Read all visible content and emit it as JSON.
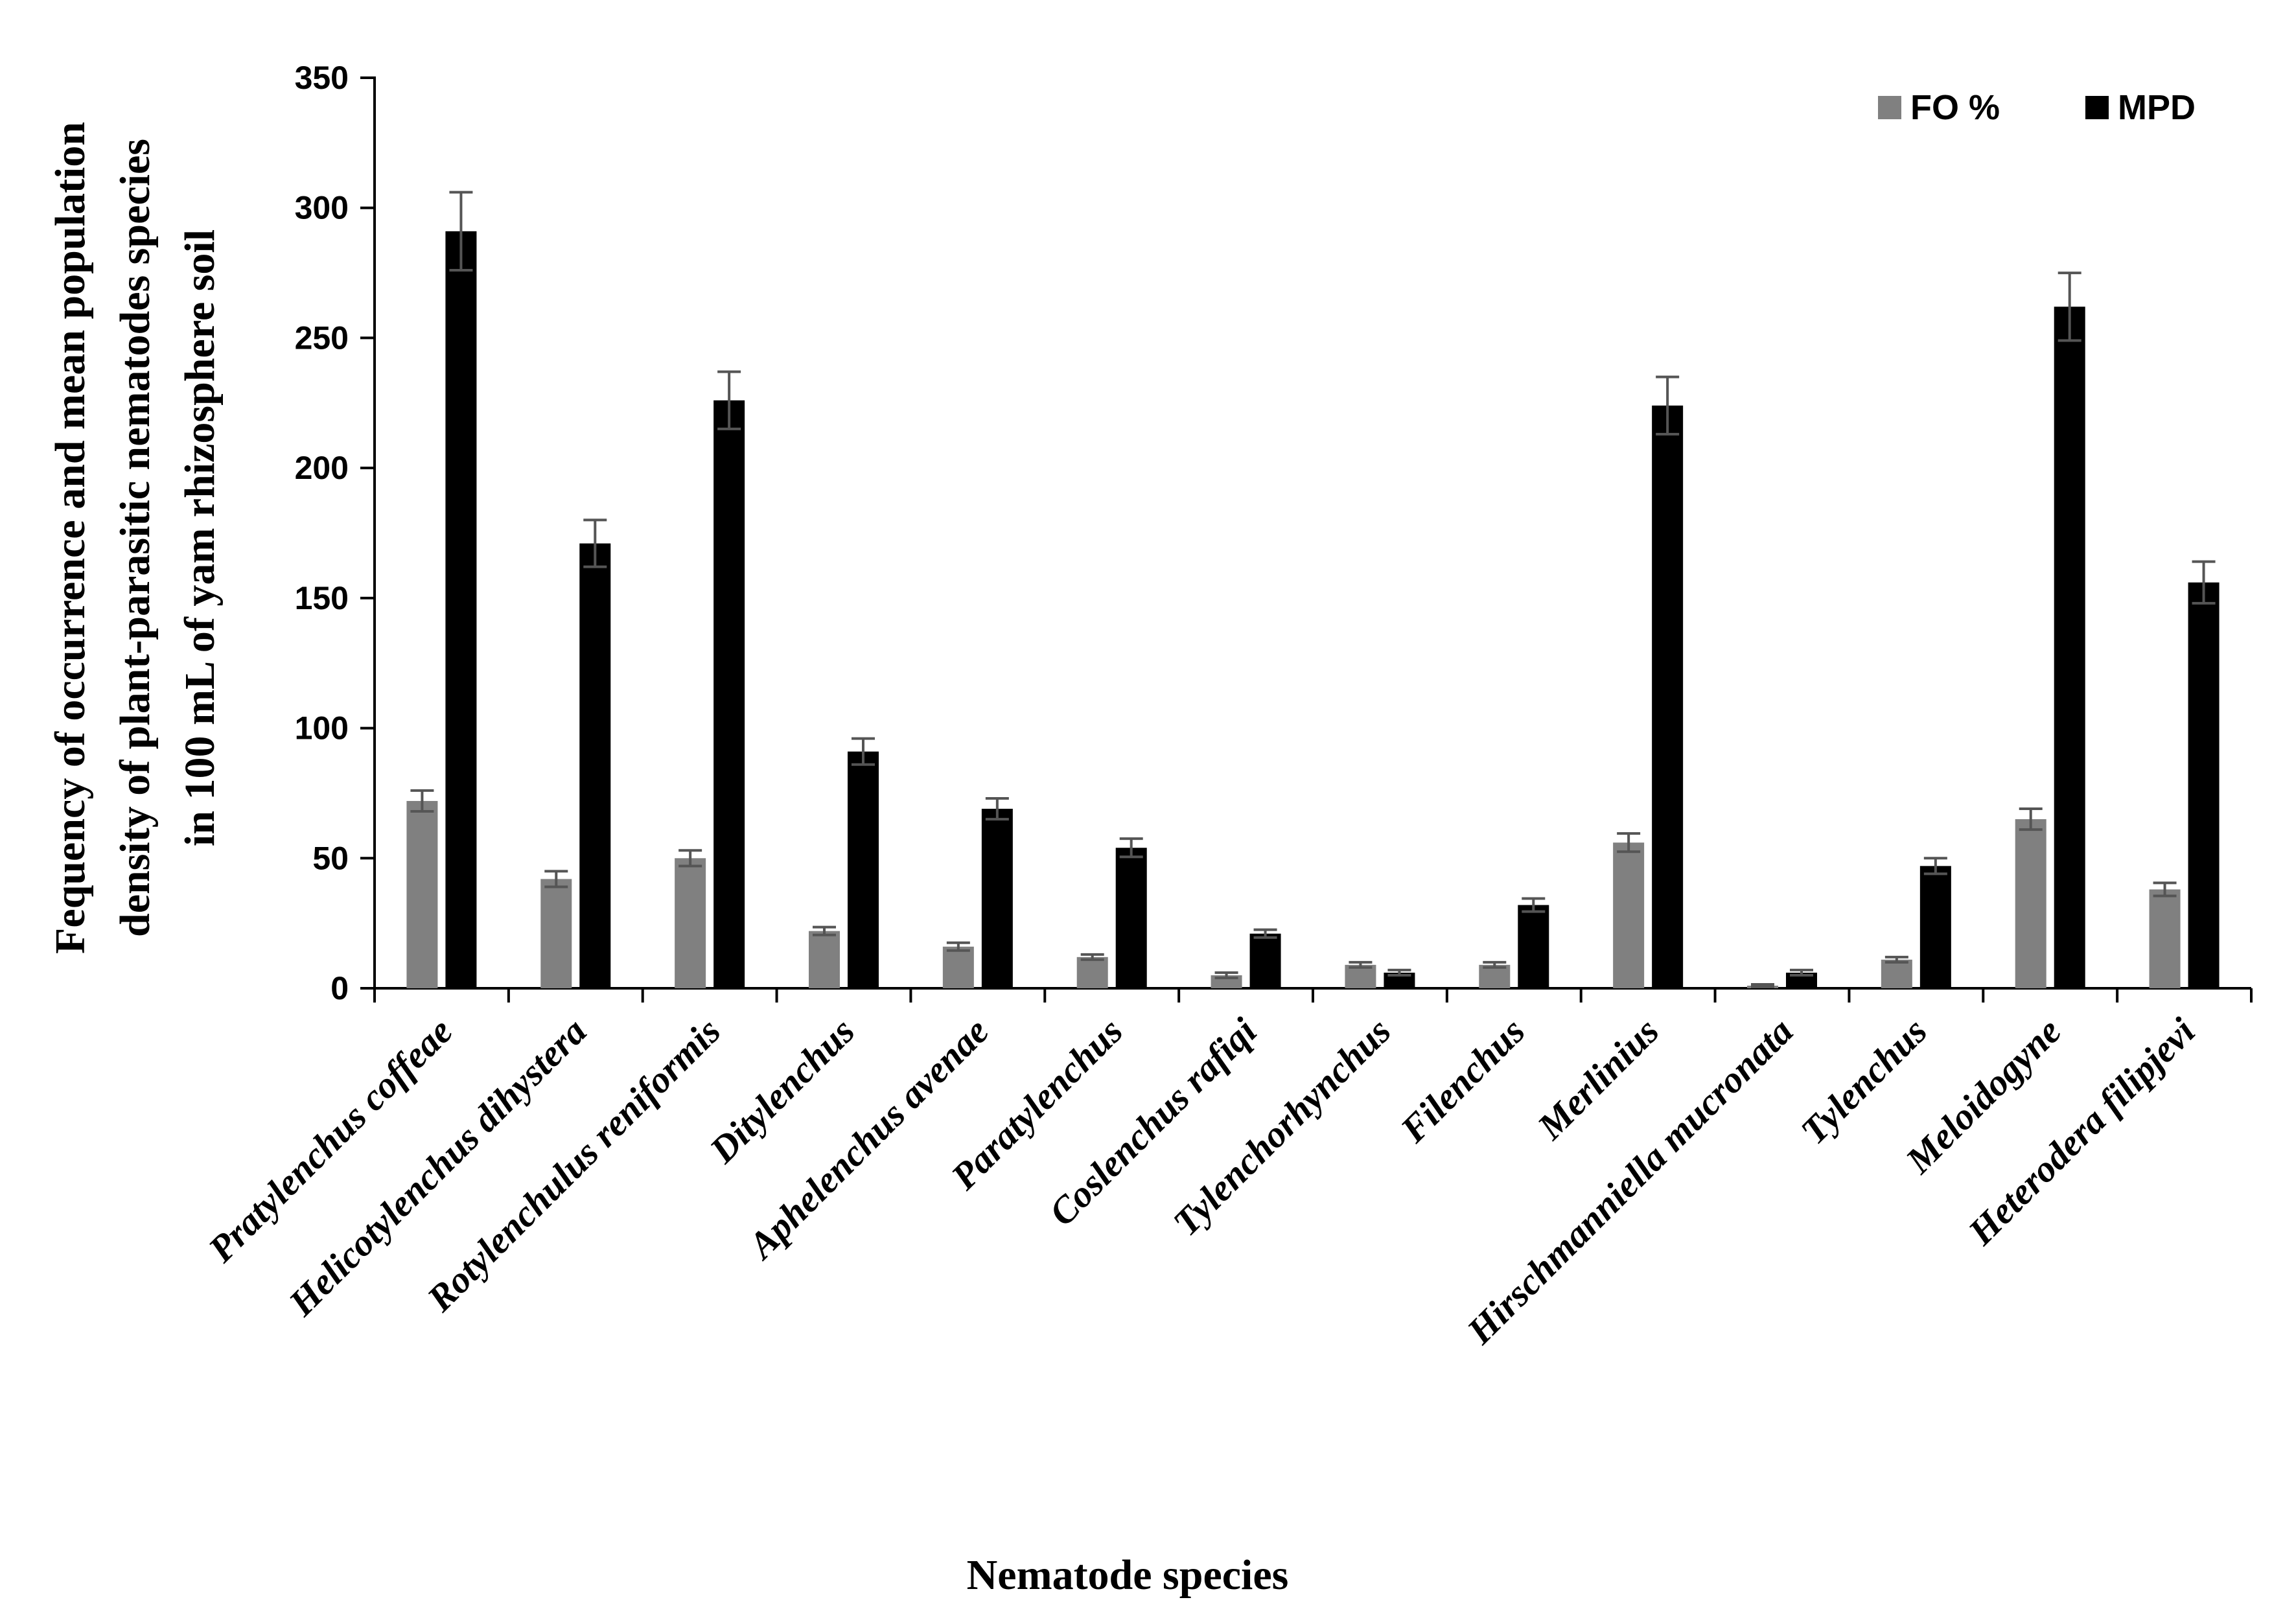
{
  "chart_data": {
    "type": "bar",
    "title": "",
    "xlabel": "Nematode species",
    "ylabel_lines": [
      "Fequency of occurrence and mean population",
      "density of plant-parasitic nematodes species",
      "in 100 mL of yam rhizosphere soil"
    ],
    "ylim": [
      0,
      350
    ],
    "yticks": [
      0,
      50,
      100,
      150,
      200,
      250,
      300,
      350
    ],
    "legend_position": "top-right",
    "categories": [
      "Pratylenchus coffeae",
      "Helicotylenchus dihystera",
      "Rotylenchulus reniformis",
      "Ditylenchus",
      "Aphelenchus avenae",
      "Paratylenchus",
      "Coslenchus rafiqi",
      "Tylenchorhynchus",
      "Filenchus",
      "Merlinius",
      "Hirschmanniella mucronata",
      "Tylenchus",
      "Meloidogyne",
      "Heterodera filipjevi"
    ],
    "series": [
      {
        "name": "FO %",
        "color": "#808080",
        "values": [
          72,
          42,
          50,
          22,
          16,
          12,
          5,
          9,
          9,
          56,
          1,
          11,
          65,
          38
        ],
        "errors": [
          4,
          3,
          3,
          1.5,
          1.5,
          1,
          1,
          1,
          1,
          3.5,
          0.5,
          1,
          4,
          2.5
        ]
      },
      {
        "name": "MPD",
        "color": "#000000",
        "values": [
          291,
          171,
          226,
          91,
          69,
          54,
          21,
          6,
          32,
          224,
          6,
          47,
          262,
          156
        ],
        "errors": [
          15,
          9,
          11,
          5,
          4,
          3.5,
          1.5,
          1,
          2.5,
          11,
          1,
          3,
          13,
          8
        ]
      }
    ]
  }
}
